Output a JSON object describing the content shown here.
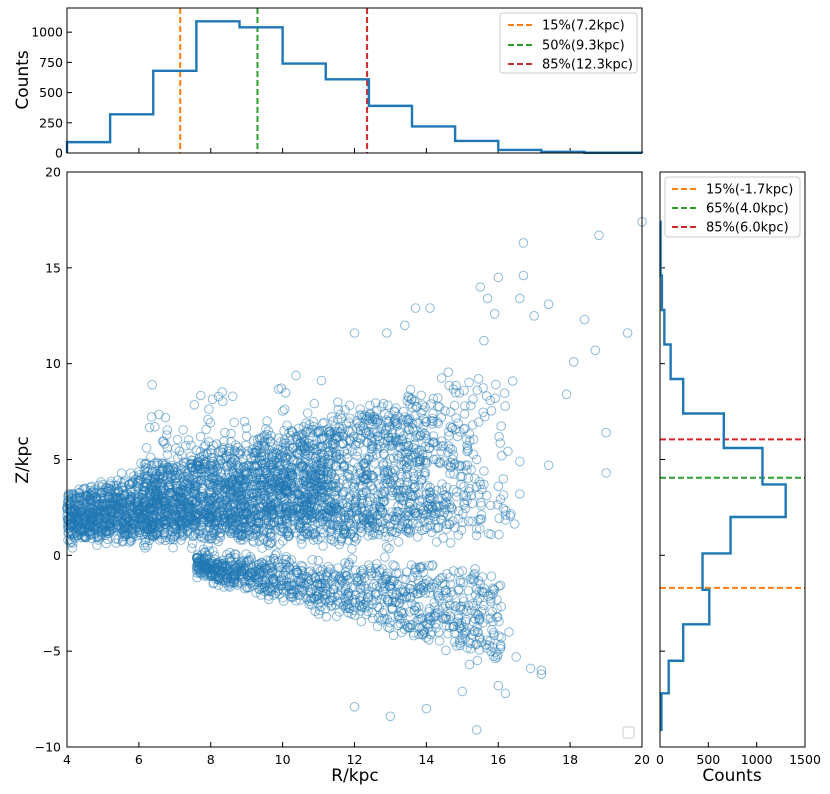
{
  "colors": {
    "hist": "#1f77b4",
    "p15": "#ff7f0e",
    "p50": "#2ca02c",
    "p85": "#d62728"
  },
  "chart_data": [
    {
      "name": "top-histogram",
      "type": "histogram-step",
      "xlabel": "",
      "ylabel": "Counts",
      "xlim": [
        4,
        20
      ],
      "ylim": [
        0,
        1200
      ],
      "ytick_labels": [
        "0",
        "250",
        "500",
        "750",
        "1000"
      ],
      "bin_edges": [
        4.0,
        5.2,
        6.4,
        7.6,
        8.8,
        10.0,
        11.2,
        12.4,
        13.6,
        14.8,
        16.0,
        17.2,
        18.4,
        20.0
      ],
      "counts": [
        90,
        320,
        680,
        1090,
        1040,
        740,
        610,
        390,
        220,
        100,
        25,
        10,
        2
      ],
      "vlines": [
        {
          "label": "15%(7.2kpc)",
          "value": 7.15,
          "color_key": "p15"
        },
        {
          "label": "50%(9.3kpc)",
          "value": 9.3,
          "color_key": "p50"
        },
        {
          "label": "85%(12.3kpc)",
          "value": 12.35,
          "color_key": "p85"
        }
      ],
      "legend": [
        "15%(7.2kpc)",
        "50%(9.3kpc)",
        "85%(12.3kpc)"
      ]
    },
    {
      "name": "scatter",
      "type": "scatter",
      "xlabel": "R/kpc",
      "ylabel": "Z/kpc",
      "xlim": [
        4,
        20
      ],
      "ylim": [
        -10,
        20
      ],
      "xtick_labels": [
        "4",
        "6",
        "8",
        "10",
        "12",
        "14",
        "16",
        "18",
        "20"
      ],
      "ytick_labels": [
        "−10",
        "−5",
        "0",
        "5",
        "10",
        "15",
        "20"
      ],
      "marker": "open-circle",
      "approx_point_count": 4500,
      "points": [
        [
          20.0,
          17.4
        ],
        [
          19.6,
          11.6
        ],
        [
          19.0,
          6.4
        ],
        [
          19.0,
          4.3
        ],
        [
          18.7,
          10.7
        ],
        [
          18.1,
          10.1
        ],
        [
          17.9,
          8.4
        ],
        [
          17.4,
          4.7
        ],
        [
          17.4,
          13.1
        ],
        [
          17.0,
          12.5
        ],
        [
          16.7,
          16.3
        ],
        [
          16.7,
          14.6
        ],
        [
          16.6,
          13.4
        ],
        [
          17.2,
          -6.0
        ],
        [
          17.2,
          -6.2
        ],
        [
          16.9,
          -5.9
        ],
        [
          18.8,
          16.7
        ],
        [
          18.4,
          12.3
        ],
        [
          15.0,
          -7.1
        ],
        [
          16.0,
          -6.8
        ],
        [
          16.2,
          -7.2
        ],
        [
          15.2,
          -5.7
        ],
        [
          16.3,
          -4.0
        ],
        [
          16.5,
          -5.3
        ],
        [
          14.0,
          -8.0
        ],
        [
          13.0,
          -8.4
        ],
        [
          12.0,
          -7.9
        ],
        [
          14.2,
          5.0
        ],
        [
          15.4,
          5.0
        ],
        [
          15.6,
          4.4
        ],
        [
          16.0,
          3.6
        ],
        [
          15.6,
          3.7
        ],
        [
          16.1,
          5.2
        ],
        [
          16.6,
          4.9
        ],
        [
          16.6,
          3.2
        ],
        [
          15.7,
          13.4
        ],
        [
          15.9,
          12.6
        ],
        [
          16.0,
          14.5
        ],
        [
          15.5,
          14.0
        ],
        [
          15.6,
          11.2
        ],
        [
          13.7,
          12.9
        ],
        [
          14.1,
          12.9
        ],
        [
          12.9,
          11.6
        ],
        [
          12.0,
          11.6
        ],
        [
          13.4,
          12.0
        ],
        [
          15.4,
          -9.1
        ]
      ],
      "legend": []
    },
    {
      "name": "right-histogram",
      "type": "histogram-step-horizontal",
      "xlabel": "Counts",
      "ylabel": "",
      "xlim": [
        0,
        1500
      ],
      "ylim": [
        -10,
        20
      ],
      "xtick_labels": [
        "0",
        "500",
        "1000",
        "1500"
      ],
      "bin_edges": [
        -9.1,
        -7.2,
        -5.5,
        -3.6,
        -1.8,
        0.1,
        2.0,
        3.7,
        5.6,
        7.4,
        9.2,
        11.0,
        12.8,
        14.6,
        17.4
      ],
      "counts": [
        15,
        90,
        240,
        510,
        440,
        730,
        1300,
        1060,
        660,
        240,
        110,
        45,
        20,
        6
      ],
      "hlines": [
        {
          "label": "15%(-1.7kpc)",
          "value": -1.7,
          "color_key": "p15"
        },
        {
          "label": "65%(4.0kpc)",
          "value": 4.05,
          "color_key": "p50"
        },
        {
          "label": "85%(6.0kpc)",
          "value": 6.05,
          "color_key": "p85"
        }
      ],
      "legend": [
        "15%(-1.7kpc)",
        "65%(4.0kpc)",
        "85%(6.0kpc)"
      ]
    }
  ]
}
